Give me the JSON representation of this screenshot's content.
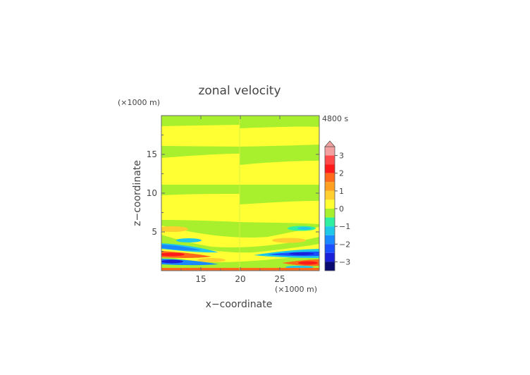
{
  "chart_data": {
    "type": "heatmap",
    "title": "zonal velocity",
    "time_label": "4800 s",
    "xlabel": "x−coordinate",
    "ylabel": "z−coordinate",
    "x_unit_label": "(×1000 m)",
    "y_unit_label": "(×1000 m)",
    "xlim": [
      10,
      30
    ],
    "ylim": [
      0,
      20
    ],
    "x_ticks": [
      15,
      20,
      25
    ],
    "y_ticks": [
      5,
      10,
      15
    ],
    "colorbar": {
      "ticks": [
        3,
        2,
        1,
        0,
        -1,
        -2,
        -3
      ],
      "tick_labels": [
        "3",
        "2",
        "1",
        "0",
        "−1",
        "−2",
        "−3"
      ],
      "range": [
        -3.5,
        3.5
      ],
      "extend": "max"
    },
    "levels": [
      {
        "range": [
          3.0,
          3.5
        ],
        "color": "#f4a0a0"
      },
      {
        "range": [
          2.5,
          3.0
        ],
        "color": "#ff4a4a"
      },
      {
        "range": [
          2.0,
          2.5
        ],
        "color": "#ff1a1a"
      },
      {
        "range": [
          1.5,
          2.0
        ],
        "color": "#ff6a1a"
      },
      {
        "range": [
          1.0,
          1.5
        ],
        "color": "#ffa020"
      },
      {
        "range": [
          0.5,
          1.0
        ],
        "color": "#ffcf30"
      },
      {
        "range": [
          0.0,
          0.5
        ],
        "color": "#ffff33"
      },
      {
        "range": [
          -0.5,
          0.0
        ],
        "color": "#a8f02e"
      },
      {
        "range": [
          -1.0,
          -0.5
        ],
        "color": "#2ef0a0"
      },
      {
        "range": [
          -1.5,
          -1.0
        ],
        "color": "#20c8e8"
      },
      {
        "range": [
          -2.0,
          -1.5
        ],
        "color": "#1a88ff"
      },
      {
        "range": [
          -2.5,
          -2.0
        ],
        "color": "#1a50ff"
      },
      {
        "range": [
          -3.0,
          -2.5
        ],
        "color": "#1a20d8"
      },
      {
        "range": [
          -3.5,
          -3.0
        ],
        "color": "#0a0a70"
      }
    ]
  }
}
